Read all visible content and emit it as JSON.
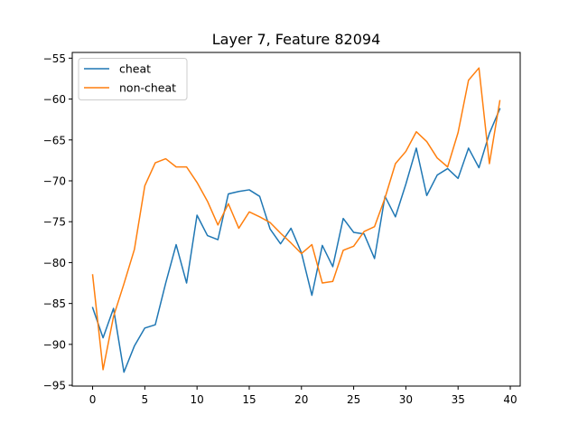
{
  "chart_data": {
    "type": "line",
    "title": "Layer 7, Feature 82094",
    "xlabel": "",
    "ylabel": "",
    "xlim": [
      -1.95,
      40.95
    ],
    "ylim": [
      -95.1,
      -54.3
    ],
    "xticks": [
      0,
      5,
      10,
      15,
      20,
      25,
      30,
      35,
      40
    ],
    "yticks": [
      -95,
      -90,
      -85,
      -80,
      -75,
      -70,
      -65,
      -60,
      -55
    ],
    "xtick_labels": [
      "0",
      "5",
      "10",
      "15",
      "20",
      "25",
      "30",
      "35",
      "40"
    ],
    "ytick_labels": [
      "−95",
      "−90",
      "−85",
      "−80",
      "−75",
      "−70",
      "−65",
      "−60",
      "−55"
    ],
    "grid": false,
    "legend_position": "upper left",
    "series": [
      {
        "name": "cheat",
        "color": "#1f77b4",
        "x": [
          0,
          1,
          2,
          3,
          4,
          5,
          6,
          7,
          8,
          9,
          10,
          11,
          12,
          13,
          14,
          15,
          16,
          17,
          18,
          19,
          20,
          21,
          22,
          23,
          24,
          25,
          26,
          27,
          28,
          29,
          30,
          31,
          32,
          33,
          34,
          35,
          36,
          37,
          38,
          39
        ],
        "values": [
          -85.5,
          -89.2,
          -85.6,
          -93.4,
          -90.2,
          -88.0,
          -87.6,
          -82.5,
          -77.8,
          -82.5,
          -74.2,
          -76.7,
          -77.2,
          -71.6,
          -71.3,
          -71.1,
          -71.9,
          -75.9,
          -77.7,
          -75.8,
          -78.8,
          -84.0,
          -77.9,
          -80.5,
          -74.6,
          -76.3,
          -76.5,
          -79.5,
          -71.9,
          -74.4,
          -70.4,
          -66.0,
          -71.8,
          -69.3,
          -68.5,
          -69.7,
          -66.0,
          -68.4,
          -64.2,
          -61.2
        ]
      },
      {
        "name": "non-cheat",
        "color": "#ff7f0e",
        "x": [
          0,
          1,
          2,
          3,
          4,
          5,
          6,
          7,
          8,
          9,
          10,
          11,
          12,
          13,
          14,
          15,
          16,
          17,
          18,
          19,
          20,
          21,
          22,
          23,
          24,
          25,
          26,
          27,
          28,
          29,
          30,
          31,
          32,
          33,
          34,
          35,
          36,
          37,
          38,
          39
        ],
        "values": [
          -81.5,
          -93.1,
          -86.6,
          -82.6,
          -78.4,
          -70.6,
          -67.8,
          -67.3,
          -68.3,
          -68.3,
          -70.2,
          -72.5,
          -75.4,
          -72.8,
          -75.8,
          -73.8,
          -74.4,
          -75.1,
          -76.4,
          -77.6,
          -78.9,
          -77.8,
          -82.5,
          -82.3,
          -78.5,
          -78.0,
          -76.2,
          -75.6,
          -72.1,
          -67.9,
          -66.4,
          -64.0,
          -65.2,
          -67.2,
          -68.3,
          -64.1,
          -57.7,
          -56.2,
          -67.9,
          -60.2
        ]
      }
    ]
  }
}
